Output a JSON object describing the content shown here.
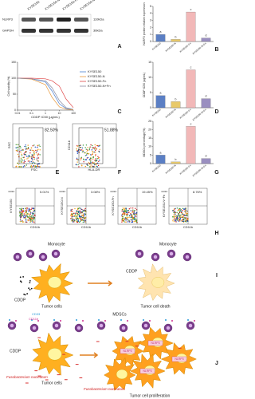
{
  "blot": {
    "rows": [
      "NLRP3",
      "GAPDH"
    ],
    "columns": [
      "KYSE150",
      "KYSE150-N",
      "KYSE150-Fn",
      "KYSE150-N+Fn"
    ],
    "sizes": [
      "110kDa",
      "36kDa"
    ]
  },
  "panel_labels": [
    "A",
    "B",
    "C",
    "D",
    "E",
    "F",
    "G",
    "H",
    "I",
    "J"
  ],
  "flow_single": [
    {
      "y_label": "SSC",
      "x_label": "FSC",
      "percent": "82.50%"
    },
    {
      "y_label": "CD11b",
      "x_label": "HLA-DR",
      "percent": "51.88%"
    }
  ],
  "flow_h": {
    "y_label": "CD33",
    "x_label": "CD11b",
    "panels": [
      {
        "sample": "KYSE150",
        "percent": "5.01%"
      },
      {
        "sample": "KYSE150-N",
        "percent": "3.08%"
      },
      {
        "sample": "KYSE150-Fn",
        "percent": "19.45%"
      },
      {
        "sample": "KYSE150-N+Fn",
        "percent": "8.76%"
      }
    ]
  },
  "diagram_i": {
    "cell": "Monocyte",
    "drug": "CDDP",
    "tumor": "Tumor cells",
    "outcome": "Tumor cell death"
  },
  "diagram_j": {
    "cell": "MDSCs",
    "markers": [
      "CD33",
      "CD11b"
    ],
    "drug": "CDDP",
    "bacterium": "Fusobacterium nucleatum",
    "tumor": "Tumor cells",
    "protein": "NLRP3",
    "outcome": "Tumor cell proliferation"
  },
  "chart_data": [
    {
      "type": "bar",
      "y_label": "NLRP3 protein relative expression",
      "categories": [
        "KYSE150",
        "KYSE150-N",
        "KYSE150-Fn",
        "KYSE150-N+Fn"
      ],
      "values": [
        1,
        0.3,
        4.2,
        0.5
      ],
      "colors": [
        "#5b7fc4",
        "#e8c96a",
        "#f2b8b8",
        "#9a8fc0"
      ],
      "ylim": [
        0,
        5
      ],
      "yticks": [
        0,
        1,
        2,
        3,
        4,
        5
      ],
      "annotations": [
        "a",
        "b",
        "c",
        "d"
      ]
    },
    {
      "type": "line",
      "y_label": "Cell viability (%)",
      "x_label": "CDDP IC50 (μg/mL)",
      "log_x": true,
      "x": [
        0.01,
        0.1,
        1,
        3,
        10,
        30,
        100
      ],
      "xlim": [
        0.01,
        100
      ],
      "xticks": [
        0.01,
        0.1,
        1,
        10,
        100
      ],
      "ylim": [
        0,
        150
      ],
      "yticks": [
        0,
        50,
        100,
        150
      ],
      "series": [
        {
          "name": "KYSE150",
          "color": "#4a7fd0",
          "values": [
            100,
            98,
            88,
            60,
            20,
            5,
            2
          ]
        },
        {
          "name": "KYSE150-N",
          "color": "#e89a3c",
          "values": [
            100,
            97,
            80,
            40,
            10,
            3,
            1
          ]
        },
        {
          "name": "KYSE150-Fn",
          "color": "#e04848",
          "values": [
            100,
            100,
            98,
            92,
            75,
            35,
            8
          ]
        },
        {
          "name": "KYSE150-N+Fn",
          "color": "#8a8aa0",
          "values": [
            100,
            98,
            92,
            70,
            30,
            8,
            2
          ]
        }
      ]
    },
    {
      "type": "bar",
      "y_label": "CDDP IC50 (μg/mL)",
      "categories": [
        "KYSE150",
        "KYSE150-N",
        "KYSE150-Fn",
        "KYSE150-N+Fn"
      ],
      "values": [
        4,
        2,
        12.5,
        3
      ],
      "colors": [
        "#5b7fc4",
        "#e8c96a",
        "#f2b8b8",
        "#9a8fc0"
      ],
      "ylim": [
        0,
        15
      ],
      "yticks": [
        0,
        5,
        10,
        15
      ],
      "annotations": [
        "a",
        "b",
        "c",
        "d"
      ]
    },
    {
      "type": "bar",
      "y_label": "MDSCs percentage(%)",
      "categories": [
        "KYSE150",
        "KYSE150-N",
        "KYSE150-Fn",
        "KYSE150-N+Fn"
      ],
      "values": [
        5,
        1,
        22,
        3
      ],
      "colors": [
        "#5b7fc4",
        "#e8c96a",
        "#f2b8b8",
        "#9a8fc0"
      ],
      "ylim": [
        0,
        25
      ],
      "yticks": [
        0,
        5,
        10,
        15,
        20,
        25
      ],
      "annotations": [
        "a",
        "b",
        "c",
        "d"
      ]
    }
  ]
}
